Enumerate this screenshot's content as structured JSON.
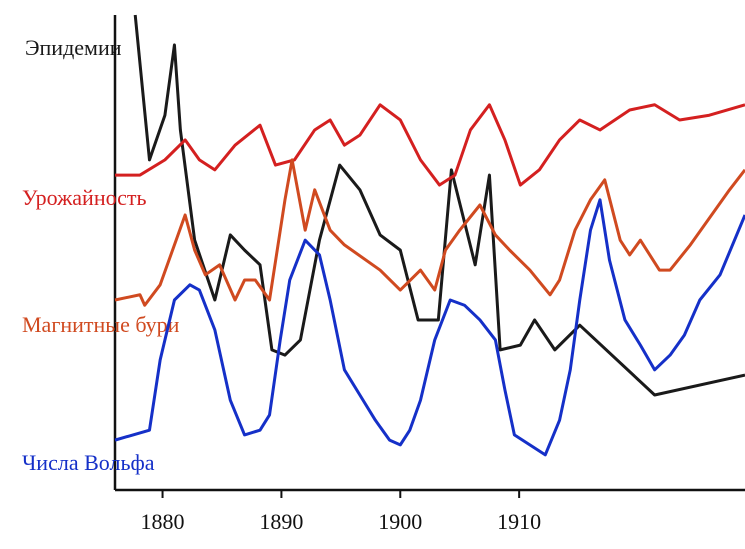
{
  "chart_data": {
    "type": "line",
    "xlim": [
      1876,
      1929
    ],
    "ylim": [
      0,
      100
    ],
    "xticks": [
      1880,
      1890,
      1900,
      1910
    ],
    "series": [
      {
        "name": "Эпидемии",
        "color": "#1a1a1a",
        "x": [
          1877.7,
          1878.9,
          1880.2,
          1881.0,
          1881.5,
          1882.7,
          1884.4,
          1885.7,
          1886.9,
          1888.2,
          1889.2,
          1890.3,
          1891.6,
          1893.2,
          1894.9,
          1896.6,
          1898.3,
          1900.0,
          1901.5,
          1903.2,
          1904.3,
          1906.3,
          1907.5,
          1908.4,
          1910.1,
          1911.3,
          1913.0,
          1915.1,
          1921.4,
          1929.0
        ],
        "values": [
          100,
          69.5,
          78.9,
          93.7,
          75.8,
          52.6,
          40.0,
          53.7,
          50.5,
          47.4,
          29.5,
          28.4,
          31.6,
          52.6,
          68.4,
          63.2,
          53.7,
          50.5,
          35.8,
          35.8,
          67.4,
          47.4,
          66.3,
          29.5,
          30.5,
          35.8,
          29.5,
          34.7,
          20.0,
          24.2
        ]
      },
      {
        "name": "Урожайность",
        "color": "#d42020",
        "x": [
          1876.0,
          1878.1,
          1880.2,
          1881.9,
          1883.1,
          1884.4,
          1886.1,
          1888.2,
          1889.5,
          1891.1,
          1892.8,
          1894.1,
          1895.3,
          1896.6,
          1898.3,
          1900.0,
          1901.7,
          1903.3,
          1904.6,
          1905.9,
          1907.5,
          1908.8,
          1910.1,
          1911.7,
          1913.4,
          1915.1,
          1916.8,
          1919.3,
          1921.4,
          1923.5,
          1926.0,
          1929.0
        ],
        "values": [
          66.3,
          66.3,
          69.5,
          73.7,
          69.5,
          67.4,
          72.6,
          76.8,
          68.4,
          69.5,
          75.8,
          77.9,
          72.6,
          74.7,
          81.1,
          77.9,
          69.5,
          64.2,
          66.3,
          75.8,
          81.1,
          73.7,
          64.2,
          67.4,
          73.7,
          77.9,
          75.8,
          80.0,
          81.1,
          77.9,
          78.9,
          81.1
        ]
      },
      {
        "name": "Магнитные бури",
        "color": "#d04a20",
        "x": [
          1876.0,
          1878.1,
          1878.5,
          1879.8,
          1881.9,
          1882.7,
          1883.6,
          1884.8,
          1886.1,
          1886.9,
          1887.8,
          1889.0,
          1890.3,
          1890.9,
          1892.0,
          1892.8,
          1894.1,
          1895.3,
          1898.3,
          1900.0,
          1901.7,
          1902.9,
          1903.8,
          1905.0,
          1906.7,
          1908.0,
          1909.2,
          1910.9,
          1912.6,
          1913.4,
          1914.7,
          1916.0,
          1917.2,
          1918.5,
          1919.3,
          1920.2,
          1921.8,
          1922.7,
          1924.4,
          1927.7,
          1929.0
        ],
        "values": [
          40.0,
          41.1,
          38.9,
          43.2,
          57.9,
          50.5,
          45.3,
          47.4,
          40.0,
          44.2,
          44.2,
          40.0,
          61.1,
          69.5,
          54.7,
          63.2,
          54.7,
          51.6,
          46.3,
          42.1,
          46.3,
          42.1,
          50.5,
          54.7,
          60.0,
          53.7,
          50.5,
          46.3,
          41.1,
          44.2,
          54.7,
          61.1,
          65.3,
          52.6,
          49.5,
          52.6,
          46.3,
          46.3,
          51.6,
          63.2,
          67.4
        ]
      },
      {
        "name": "Числа Вольфа",
        "color": "#1530c8",
        "x": [
          1876.0,
          1878.9,
          1879.8,
          1881.0,
          1882.3,
          1883.1,
          1884.4,
          1885.7,
          1886.9,
          1888.2,
          1889.0,
          1889.9,
          1890.7,
          1892.0,
          1893.2,
          1894.1,
          1895.3,
          1896.6,
          1897.9,
          1899.1,
          1900.0,
          1900.8,
          1901.7,
          1902.9,
          1904.2,
          1905.4,
          1906.7,
          1908.0,
          1908.8,
          1909.6,
          1910.9,
          1912.2,
          1913.4,
          1914.3,
          1915.1,
          1916.0,
          1916.8,
          1917.6,
          1918.9,
          1920.2,
          1921.4,
          1922.7,
          1923.9,
          1925.2,
          1926.9,
          1929.0
        ],
        "values": [
          10.5,
          12.6,
          27.4,
          40.0,
          43.2,
          42.1,
          33.7,
          18.9,
          11.6,
          12.6,
          15.8,
          31.6,
          44.2,
          52.6,
          49.5,
          40.0,
          25.3,
          20.0,
          14.7,
          10.5,
          9.5,
          12.6,
          18.9,
          31.6,
          40.0,
          38.9,
          35.8,
          31.6,
          21.1,
          11.6,
          9.5,
          7.4,
          14.7,
          25.3,
          40.0,
          54.7,
          61.1,
          48.4,
          35.8,
          30.5,
          25.3,
          28.4,
          32.6,
          40.0,
          45.3,
          57.9
        ]
      }
    ]
  }
}
